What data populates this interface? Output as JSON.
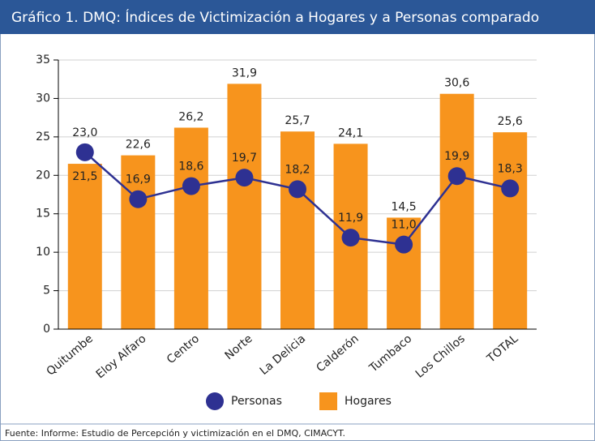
{
  "chart_data": {
    "type": "bar",
    "title": "Gráfico 1. DMQ: Índices de Victimización a Hogares y a Personas comparado",
    "categories": [
      "Quitumbe",
      "Eloy Alfaro",
      "Centro",
      "Norte",
      "La Delicia",
      "Calderón",
      "Tumbaco",
      "Los Chillos",
      "TOTAL"
    ],
    "series": [
      {
        "name": "Personas",
        "type": "line",
        "color": "#2e3192",
        "values": [
          23.0,
          16.9,
          18.6,
          19.7,
          18.2,
          11.9,
          11.0,
          19.9,
          18.3
        ],
        "value_labels": [
          "23,0",
          "16,9",
          "18,6",
          "19,7",
          "18,2",
          "11,9",
          "11,0",
          "19,9",
          "18,3"
        ]
      },
      {
        "name": "Hogares",
        "type": "bar",
        "color": "#f7941d",
        "values": [
          21.5,
          22.6,
          26.2,
          31.9,
          25.7,
          24.1,
          14.5,
          30.6,
          25.6
        ],
        "value_labels": [
          "21,5",
          "22,6",
          "26,2",
          "31,9",
          "25,7",
          "24,1",
          "14,5",
          "30,6",
          "25,6"
        ]
      }
    ],
    "ylim": [
      0,
      35
    ],
    "yticks": [
      0,
      5,
      10,
      15,
      20,
      25,
      30,
      35
    ],
    "grid": true,
    "legend": "bottom",
    "source": "Fuente: Informe: Estudio de Percepción y victimización en el DMQ, CIMACYT."
  }
}
